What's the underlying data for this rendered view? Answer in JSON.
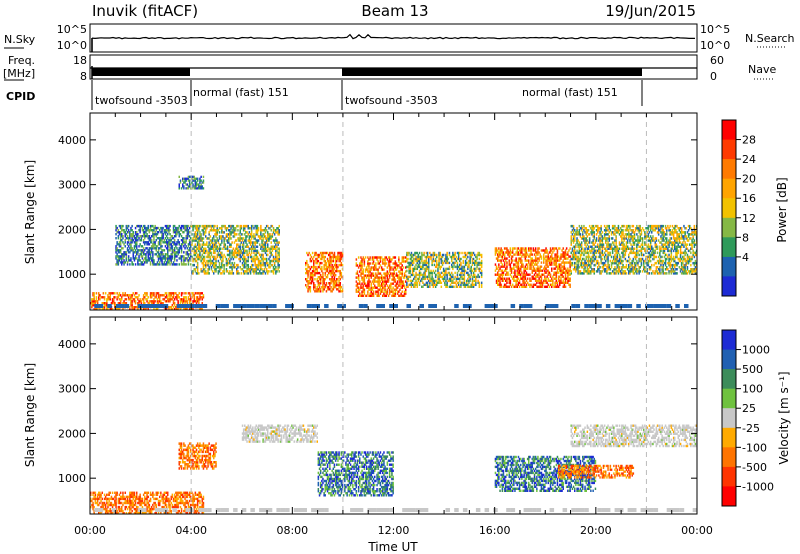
{
  "header": {
    "station": "Inuvik (fitACF)",
    "beam": "Beam 13",
    "date": "19/Jun/2015"
  },
  "top_panels": {
    "nsky_label": "N.Sky",
    "nsky_ticks": [
      "10^5",
      "10^0"
    ],
    "nsearch_label": "N.Search",
    "nsearch_ticks": [
      "10^5",
      "10^0"
    ],
    "freq_label": "Freq.",
    "freq_unit": "[MHz]",
    "freq_ticks": [
      "18",
      "8"
    ],
    "nave_label": "Nave",
    "nave_ticks": [
      "60",
      "0"
    ],
    "cpid_label": "CPID",
    "cpid_segments": [
      {
        "label": "twofsound -3503",
        "start": 0.0
      },
      {
        "label": "normal (fast) 151",
        "start": 4.0
      },
      {
        "label": "twofsound -3503",
        "start": 10.0
      },
      {
        "label": "normal (fast) 151",
        "start": 22.0
      }
    ]
  },
  "legends": {
    "power_title": "Power [dB]",
    "power_ticks": [
      "28",
      "24",
      "20",
      "16",
      "12",
      "8",
      "4"
    ],
    "power_colors": [
      "#ff0000",
      "#ff3a00",
      "#ff7a00",
      "#ffa400",
      "#f2c200",
      "#85b845",
      "#2e9a5a",
      "#1d62b0",
      "#1d2bd4"
    ],
    "velocity_title": "Velocity [m s⁻¹]",
    "velocity_ticks": [
      "1000",
      "500",
      "100",
      "25",
      "-25",
      "-100",
      "-500",
      "-1000"
    ],
    "velocity_colors": [
      "#1d2bd4",
      "#2060b2",
      "#3c8c5a",
      "#6fc23f",
      "#c8c8c8",
      "#ffaa00",
      "#ff7400",
      "#ff3400",
      "#ff0000"
    ]
  },
  "chart_data": [
    {
      "type": "heatmap",
      "title": "",
      "xlabel": "",
      "ylabel": "Slant Range [km]",
      "xlim": [
        0,
        24
      ],
      "ylim": [
        200,
        4600
      ],
      "yticks": [
        1000,
        2000,
        3000,
        4000
      ],
      "quantity": "Power [dB]",
      "echo_regions": [
        {
          "t0": 0.0,
          "t1": 4.5,
          "r0": 200,
          "r1": 600,
          "level": "high"
        },
        {
          "t0": 1.0,
          "t1": 4.0,
          "r0": 1200,
          "r1": 2100,
          "level": "low"
        },
        {
          "t0": 3.5,
          "t1": 4.5,
          "r0": 2900,
          "r1": 3200,
          "level": "low"
        },
        {
          "t0": 4.0,
          "t1": 7.5,
          "r0": 1000,
          "r1": 2100,
          "level": "mid"
        },
        {
          "t0": 8.5,
          "t1": 10.0,
          "r0": 600,
          "r1": 1500,
          "level": "high"
        },
        {
          "t0": 10.5,
          "t1": 12.5,
          "r0": 500,
          "r1": 1400,
          "level": "high"
        },
        {
          "t0": 12.5,
          "t1": 15.5,
          "r0": 700,
          "r1": 1500,
          "level": "mid"
        },
        {
          "t0": 16.0,
          "t1": 19.0,
          "r0": 700,
          "r1": 1600,
          "level": "high"
        },
        {
          "t0": 19.0,
          "t1": 24.0,
          "r0": 1000,
          "r1": 2100,
          "level": "mid"
        }
      ]
    },
    {
      "type": "heatmap",
      "title": "",
      "xlabel": "Time UT",
      "ylabel": "Slant Range [km]",
      "xlim": [
        0,
        24
      ],
      "ylim": [
        200,
        4600
      ],
      "xticks": [
        "00:00",
        "04:00",
        "08:00",
        "12:00",
        "16:00",
        "20:00",
        "00:00"
      ],
      "yticks": [
        1000,
        2000,
        3000,
        4000
      ],
      "quantity": "Velocity [m s⁻¹]",
      "echo_regions": [
        {
          "t0": 0.0,
          "t1": 4.5,
          "r0": 200,
          "r1": 700,
          "level": "negative"
        },
        {
          "t0": 3.5,
          "t1": 5.0,
          "r0": 1200,
          "r1": 1800,
          "level": "negative"
        },
        {
          "t0": 6.0,
          "t1": 9.0,
          "r0": 1800,
          "r1": 2200,
          "level": "near-zero"
        },
        {
          "t0": 9.0,
          "t1": 12.0,
          "r0": 600,
          "r1": 1600,
          "level": "positive"
        },
        {
          "t0": 16.0,
          "t1": 20.0,
          "r0": 700,
          "r1": 1500,
          "level": "positive"
        },
        {
          "t0": 18.5,
          "t1": 21.5,
          "r0": 1000,
          "r1": 1300,
          "level": "negative"
        },
        {
          "t0": 19.0,
          "t1": 24.0,
          "r0": 1700,
          "r1": 2200,
          "level": "near-zero"
        }
      ]
    }
  ]
}
